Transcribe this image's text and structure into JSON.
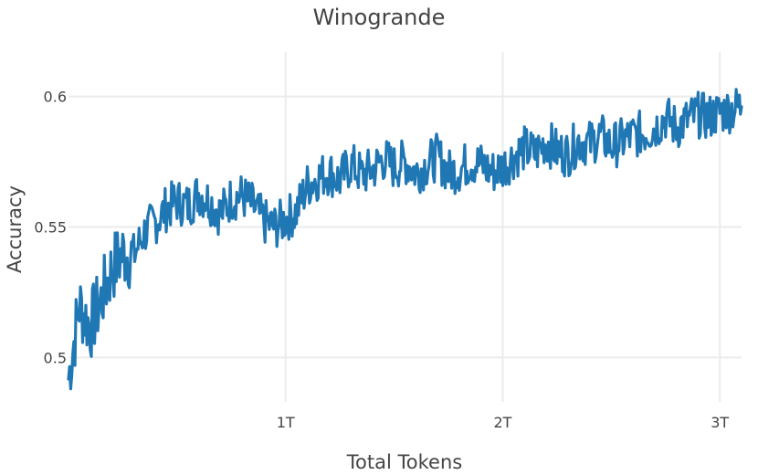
{
  "chart_data": {
    "type": "line",
    "title": "Winogrande",
    "xlabel": "Total Tokens",
    "ylabel": "Accuracy",
    "xlim": [
      0,
      3.1
    ],
    "ylim": [
      0.483,
      0.617
    ],
    "x_ticks": [
      {
        "value": 1,
        "label": "1T"
      },
      {
        "value": 2,
        "label": "2T"
      },
      {
        "value": 3,
        "label": "3T"
      }
    ],
    "y_ticks": [
      {
        "value": 0.5,
        "label": "0.5"
      },
      {
        "value": 0.55,
        "label": "0.55"
      },
      {
        "value": 0.6,
        "label": "0.6"
      }
    ],
    "grid": true,
    "x_unit": "trillion tokens",
    "series": [
      {
        "color": "#1f77b4",
        "x": [
          0.0,
          0.05,
          0.1,
          0.15,
          0.2,
          0.25,
          0.3,
          0.35,
          0.4,
          0.45,
          0.5,
          0.55,
          0.6,
          0.65,
          0.7,
          0.75,
          0.8,
          0.85,
          0.9,
          0.95,
          1.0,
          1.05,
          1.1,
          1.15,
          1.2,
          1.25,
          1.3,
          1.35,
          1.4,
          1.45,
          1.5,
          1.55,
          1.6,
          1.65,
          1.7,
          1.75,
          1.8,
          1.85,
          1.9,
          1.95,
          2.0,
          2.05,
          2.1,
          2.15,
          2.2,
          2.25,
          2.3,
          2.35,
          2.4,
          2.45,
          2.5,
          2.55,
          2.6,
          2.65,
          2.7,
          2.75,
          2.8,
          2.85,
          2.9,
          2.95,
          3.0,
          3.05,
          3.1
        ],
        "y": [
          0.492,
          0.52,
          0.512,
          0.522,
          0.534,
          0.54,
          0.539,
          0.548,
          0.552,
          0.557,
          0.56,
          0.558,
          0.563,
          0.56,
          0.555,
          0.561,
          0.562,
          0.558,
          0.552,
          0.55,
          0.553,
          0.556,
          0.566,
          0.569,
          0.571,
          0.568,
          0.574,
          0.57,
          0.572,
          0.576,
          0.573,
          0.575,
          0.571,
          0.574,
          0.577,
          0.571,
          0.572,
          0.575,
          0.574,
          0.571,
          0.573,
          0.577,
          0.58,
          0.578,
          0.583,
          0.579,
          0.578,
          0.583,
          0.582,
          0.585,
          0.581,
          0.583,
          0.585,
          0.586,
          0.588,
          0.592,
          0.588,
          0.591,
          0.593,
          0.592,
          0.594,
          0.595,
          0.596
        ]
      }
    ]
  }
}
